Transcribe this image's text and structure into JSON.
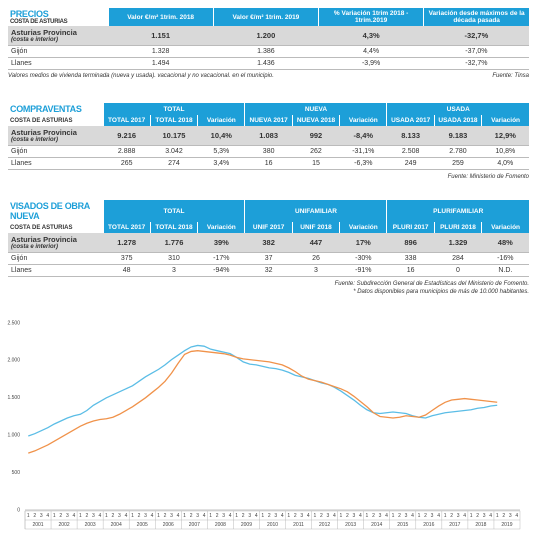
{
  "tables": [
    {
      "title": "PRECIOS",
      "subtitle": "COSTA DE ASTURIAS",
      "columns": [
        "Valor €/m² 1trim. 2018",
        "Valor €/m² 1trim. 2019",
        "% Variación 1trim 2018 - 1trim.2019",
        "Variación desde máximos de la década pasada"
      ],
      "rows": [
        {
          "label": "Asturias Provincia",
          "sublabel": "(costa e interior)",
          "cells": [
            "1.151",
            "1.200",
            "4,3%",
            "-32,7%"
          ]
        },
        {
          "label": "Gijón",
          "cells": [
            "1.328",
            "1.386",
            "4,4%",
            "-37,0%"
          ]
        },
        {
          "label": "Llanes",
          "cells": [
            "1.494",
            "1.436",
            "-3,9%",
            "-32,7%"
          ]
        }
      ],
      "note": "Valores medios de vivienda terminada (nueva y usada). vacacional y no vacacional. en el municipio.",
      "sources": [
        "Fuente: Tinsa"
      ]
    },
    {
      "title": "COMPRAVENTAS",
      "subtitle": "COSTA DE ASTURIAS",
      "groups": [
        "TOTAL",
        "NUEVA",
        "USADA"
      ],
      "columns": [
        "TOTAL 2017",
        "TOTAL 2018",
        "Variación",
        "NUEVA 2017",
        "NUEVA 2018",
        "Variación",
        "USADA 2017",
        "USADA 2018",
        "Variación"
      ],
      "rows": [
        {
          "label": "Asturias Provincia",
          "sublabel": "(costa e interior)",
          "cells": [
            "9.216",
            "10.175",
            "10,4%",
            "1.083",
            "992",
            "-8,4%",
            "8.133",
            "9.183",
            "12,9%"
          ]
        },
        {
          "label": "Gijón",
          "cells": [
            "2.888",
            "3.042",
            "5,3%",
            "380",
            "262",
            "-31,1%",
            "2.508",
            "2.780",
            "10,8%"
          ]
        },
        {
          "label": "Llanes",
          "cells": [
            "265",
            "274",
            "3,4%",
            "16",
            "15",
            "-6,3%",
            "249",
            "259",
            "4,0%"
          ]
        }
      ],
      "sources": [
        "Fuente: Ministerio de Fomento"
      ]
    },
    {
      "title": "VISADOS DE OBRA NUEVA",
      "subtitle": "COSTA DE ASTURIAS",
      "groups": [
        "TOTAL",
        "UNIFAMILIAR",
        "PLURIFAMILIAR"
      ],
      "columns": [
        "TOTAL 2017",
        "TOTAL 2018",
        "Variación",
        "UNIF 2017",
        "UNIF 2018",
        "Variación",
        "PLURI 2017",
        "PLURI 2018",
        "Variación"
      ],
      "rows": [
        {
          "label": "Asturias Provincia",
          "sublabel": "(costa e interior)",
          "cells": [
            "1.278",
            "1.776",
            "39%",
            "382",
            "447",
            "17%",
            "896",
            "1.329",
            "48%"
          ]
        },
        {
          "label": "Gijón",
          "cells": [
            "375",
            "310",
            "-17%",
            "37",
            "26",
            "-30%",
            "338",
            "284",
            "-16%"
          ]
        },
        {
          "label": "Llanes",
          "cells": [
            "48",
            "3",
            "-94%",
            "32",
            "3",
            "-91%",
            "16",
            "0",
            "N.D."
          ]
        }
      ],
      "sources": [
        "Fuente: Subdirección General de Estadísticas del Ministerio de Fomento.",
        "* Datos disponibles para municipios de más de 10.000 habitantes."
      ]
    }
  ],
  "chart_data": {
    "type": "line",
    "categories": [
      "1",
      "2",
      "3",
      "4",
      "1",
      "2",
      "3",
      "4",
      "1",
      "2",
      "3",
      "4",
      "1",
      "2",
      "3",
      "4",
      "1",
      "2",
      "3",
      "4",
      "1",
      "2",
      "3",
      "4",
      "1",
      "2",
      "3",
      "4",
      "1",
      "2",
      "3",
      "4",
      "1",
      "2",
      "3",
      "4",
      "1",
      "2",
      "3",
      "4",
      "1",
      "2",
      "3",
      "4",
      "1",
      "2",
      "3",
      "4",
      "1",
      "2",
      "3",
      "4",
      "1",
      "2",
      "3",
      "4",
      "1",
      "2",
      "3",
      "4",
      "1",
      "2",
      "3",
      "4",
      "1",
      "2",
      "3",
      "4",
      "1",
      "2",
      "3",
      "4",
      "1",
      "2",
      "3",
      "4"
    ],
    "years": [
      "2001",
      "2002",
      "2003",
      "2004",
      "2005",
      "2006",
      "2007",
      "2008",
      "2009",
      "2010",
      "2011",
      "2012",
      "2013",
      "2014",
      "2015",
      "2016",
      "2017",
      "2018",
      "2019"
    ],
    "series": [
      {
        "color": "#5bbde6",
        "values": [
          990,
          1020,
          1060,
          1100,
          1150,
          1190,
          1230,
          1260,
          1280,
          1330,
          1400,
          1450,
          1500,
          1540,
          1580,
          1620,
          1660,
          1720,
          1780,
          1830,
          1880,
          1940,
          2010,
          2070,
          2130,
          2180,
          2200,
          2190,
          2150,
          2130,
          2110,
          2090,
          2040,
          1980,
          1950,
          1940,
          1920,
          1900,
          1890,
          1870,
          1840,
          1800,
          1780,
          1760,
          1730,
          1700,
          1680,
          1640,
          1590,
          1530,
          1470,
          1400,
          1340,
          1300,
          1290,
          1300,
          1310,
          1300,
          1290,
          1260,
          1240,
          1230,
          1260,
          1280,
          1300,
          1310,
          1320,
          1330,
          1340,
          1360,
          1370,
          1390,
          1400,
          null,
          null,
          null
        ]
      },
      {
        "color": "#f0924a",
        "values": [
          760,
          790,
          830,
          870,
          920,
          970,
          1020,
          1070,
          1120,
          1160,
          1190,
          1210,
          1220,
          1240,
          1280,
          1330,
          1380,
          1440,
          1500,
          1570,
          1640,
          1720,
          1830,
          1960,
          2080,
          2120,
          2130,
          2120,
          2110,
          2100,
          2090,
          2070,
          2040,
          2020,
          2010,
          2000,
          1990,
          1980,
          1960,
          1940,
          1900,
          1850,
          1790,
          1750,
          1730,
          1710,
          1680,
          1650,
          1620,
          1580,
          1520,
          1450,
          1380,
          1300,
          1250,
          1240,
          1230,
          1240,
          1260,
          1250,
          1240,
          1270,
          1330,
          1390,
          1440,
          1470,
          1480,
          1490,
          1480,
          1470,
          1460,
          1450,
          1440,
          null,
          null,
          null
        ]
      }
    ],
    "ylim": [
      0,
      2500
    ],
    "yticks": [
      0,
      500,
      {
        "value": 1000,
        "label": "1.000"
      },
      {
        "value": 1500,
        "label": "1.500"
      },
      {
        "value": 2000,
        "label": "2.000"
      },
      {
        "value": 2500,
        "label": "2.500"
      }
    ],
    "grid": false
  }
}
